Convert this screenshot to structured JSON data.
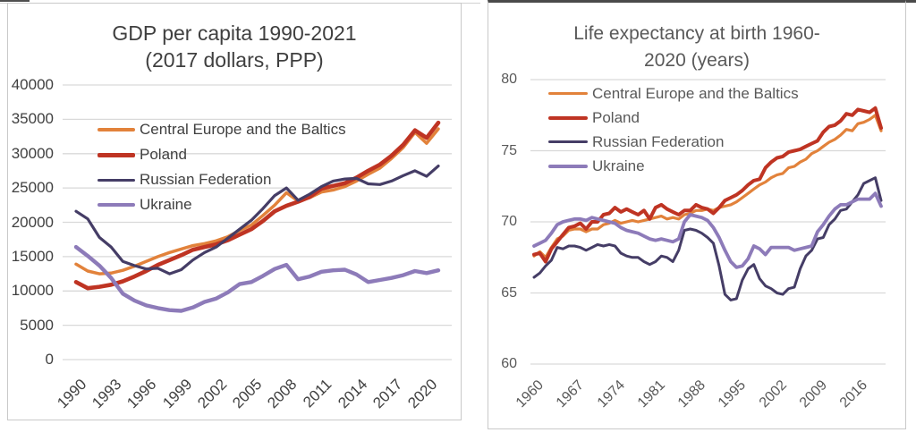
{
  "page": {
    "background": "#ffffff",
    "top_rule_color": "#4a4a4a",
    "panel_border_color": "#c9c9c9",
    "gridline_color": "#d9d9d9"
  },
  "chart_data": [
    {
      "type": "line",
      "title": "GDP per capita 1990-2021 (2017 dollars, PPP)",
      "title_line1": "GDP per capita 1990-2021",
      "title_line2": "(2017 dollars, PPP)",
      "xlabel": "",
      "ylabel": "",
      "xlim": [
        1990,
        2021
      ],
      "ylim": [
        0,
        40000
      ],
      "y_ticks": [
        0,
        5000,
        10000,
        15000,
        20000,
        25000,
        30000,
        35000,
        40000
      ],
      "x_ticks": [
        1990,
        1993,
        1996,
        1999,
        2002,
        2005,
        2008,
        2011,
        2014,
        2017,
        2020
      ],
      "grid": true,
      "legend_position": "upper-left-inside",
      "text_color": "#404040",
      "x": [
        1990,
        1991,
        1992,
        1993,
        1994,
        1995,
        1996,
        1997,
        1998,
        1999,
        2000,
        2001,
        2002,
        2003,
        2004,
        2005,
        2006,
        2007,
        2008,
        2009,
        2010,
        2011,
        2012,
        2013,
        2014,
        2015,
        2016,
        2017,
        2018,
        2019,
        2020,
        2021
      ],
      "series": [
        {
          "name": "Central Europe and the Baltics",
          "color": "#e2823b",
          "values": [
            13900,
            12900,
            12500,
            12600,
            13000,
            13600,
            14300,
            15000,
            15600,
            16100,
            16600,
            16900,
            17300,
            17900,
            18800,
            19600,
            21000,
            22500,
            24300,
            23100,
            23600,
            24400,
            24700,
            25200,
            26000,
            27000,
            27900,
            29300,
            30900,
            33100,
            31500,
            33600
          ]
        },
        {
          "name": "Poland",
          "color": "#bf3423",
          "values": [
            11300,
            10400,
            10600,
            10900,
            11400,
            12100,
            12900,
            13800,
            14500,
            15200,
            16000,
            16400,
            16800,
            17400,
            18200,
            19000,
            20200,
            21600,
            22400,
            23000,
            23700,
            24900,
            25300,
            25700,
            26500,
            27500,
            28400,
            29700,
            31300,
            33400,
            32300,
            34500
          ]
        },
        {
          "name": "Russian Federation",
          "color": "#453d66",
          "values": [
            21600,
            20500,
            17800,
            16400,
            14300,
            13700,
            13200,
            13300,
            12500,
            13100,
            14500,
            15600,
            16400,
            17700,
            19000,
            20300,
            22000,
            23900,
            25000,
            23200,
            24100,
            25200,
            26000,
            26300,
            26400,
            25600,
            25500,
            26000,
            26800,
            27500,
            26700,
            28200
          ]
        },
        {
          "name": "Ukraine",
          "color": "#8d7bb9",
          "values": [
            16400,
            15100,
            13700,
            11900,
            9600,
            8600,
            7900,
            7500,
            7200,
            7100,
            7600,
            8400,
            8900,
            9800,
            11000,
            11300,
            12200,
            13200,
            13800,
            11700,
            12100,
            12800,
            13000,
            13100,
            12400,
            11300,
            11600,
            11900,
            12300,
            12900,
            12600,
            13000
          ]
        }
      ]
    },
    {
      "type": "line",
      "title": "Life expectancy at birth 1960-2020 (years)",
      "title_line1": "Life expectancy at birth 1960-",
      "title_line2": "2020 (years)",
      "xlabel": "",
      "ylabel": "",
      "xlim": [
        1960,
        2020
      ],
      "ylim": [
        60,
        80
      ],
      "y_ticks": [
        60,
        65,
        70,
        75,
        80
      ],
      "x_ticks": [
        1960,
        1967,
        1974,
        1981,
        1988,
        1995,
        2002,
        2009,
        2016
      ],
      "grid": true,
      "legend_position": "upper-left-inside",
      "text_color": "#595959",
      "x": [
        1960,
        1961,
        1962,
        1963,
        1964,
        1965,
        1966,
        1967,
        1968,
        1969,
        1970,
        1971,
        1972,
        1973,
        1974,
        1975,
        1976,
        1977,
        1978,
        1979,
        1980,
        1981,
        1982,
        1983,
        1984,
        1985,
        1986,
        1987,
        1988,
        1989,
        1990,
        1991,
        1992,
        1993,
        1994,
        1995,
        1996,
        1997,
        1998,
        1999,
        2000,
        2001,
        2002,
        2003,
        2004,
        2005,
        2006,
        2007,
        2008,
        2009,
        2010,
        2011,
        2012,
        2013,
        2014,
        2015,
        2016,
        2017,
        2018,
        2019,
        2020
      ],
      "series": [
        {
          "name": "Central Europe and the Baltics",
          "color": "#e2823b",
          "values": [
            67.6,
            67.9,
            67.5,
            68.2,
            68.8,
            69.0,
            69.4,
            69.5,
            69.5,
            69.3,
            69.5,
            69.5,
            69.8,
            69.9,
            70.1,
            69.9,
            70.0,
            70.1,
            70.0,
            70.1,
            70.2,
            70.3,
            70.4,
            70.2,
            70.3,
            70.2,
            70.5,
            70.6,
            70.8,
            70.8,
            70.9,
            70.8,
            71.0,
            71.1,
            71.2,
            71.4,
            71.7,
            72.0,
            72.3,
            72.6,
            72.8,
            73.1,
            73.3,
            73.4,
            73.8,
            73.9,
            74.2,
            74.4,
            74.8,
            75.0,
            75.3,
            75.6,
            75.8,
            76.1,
            76.5,
            76.4,
            76.9,
            77.0,
            77.2,
            77.5,
            76.4
          ]
        },
        {
          "name": "Poland",
          "color": "#bf3423",
          "values": [
            67.7,
            67.8,
            67.2,
            68.1,
            68.6,
            69.1,
            69.6,
            69.7,
            69.9,
            69.5,
            70.0,
            70.0,
            70.5,
            70.6,
            71.0,
            70.7,
            70.9,
            70.7,
            70.5,
            70.8,
            70.2,
            71.0,
            71.2,
            70.9,
            70.7,
            70.5,
            70.8,
            70.8,
            71.2,
            71.0,
            70.9,
            70.6,
            71.0,
            71.5,
            71.7,
            71.9,
            72.2,
            72.6,
            72.9,
            73.0,
            73.8,
            74.2,
            74.5,
            74.6,
            74.9,
            75.0,
            75.1,
            75.3,
            75.5,
            75.7,
            76.3,
            76.7,
            76.8,
            77.1,
            77.6,
            77.5,
            77.9,
            77.8,
            77.7,
            78.0,
            76.6
          ]
        },
        {
          "name": "Russian Federation",
          "color": "#453d66",
          "values": [
            66.1,
            66.4,
            66.9,
            67.3,
            68.2,
            68.1,
            68.3,
            68.3,
            68.2,
            68.0,
            68.2,
            68.4,
            68.3,
            68.4,
            68.3,
            67.8,
            67.6,
            67.5,
            67.5,
            67.2,
            67.0,
            67.2,
            67.6,
            67.5,
            67.2,
            68.0,
            69.4,
            69.5,
            69.4,
            69.2,
            68.9,
            68.5,
            66.9,
            64.9,
            64.5,
            64.6,
            65.9,
            66.7,
            67.0,
            66.0,
            65.5,
            65.3,
            65.0,
            64.9,
            65.3,
            65.4,
            66.7,
            67.6,
            68.0,
            68.8,
            68.9,
            69.8,
            70.2,
            70.8,
            70.9,
            71.4,
            71.9,
            72.7,
            72.9,
            73.1,
            71.5
          ]
        },
        {
          "name": "Ukraine",
          "color": "#8d7bb9",
          "values": [
            68.3,
            68.5,
            68.7,
            69.2,
            69.8,
            70.0,
            70.1,
            70.2,
            70.2,
            70.1,
            70.3,
            70.2,
            70.1,
            70.0,
            69.9,
            69.6,
            69.4,
            69.3,
            69.2,
            69.0,
            68.8,
            68.7,
            68.8,
            68.7,
            68.6,
            68.8,
            70.0,
            70.5,
            70.4,
            70.3,
            70.1,
            69.6,
            68.9,
            68.0,
            67.2,
            66.8,
            66.9,
            67.4,
            68.3,
            68.1,
            67.7,
            68.2,
            68.2,
            68.2,
            68.2,
            68.0,
            68.1,
            68.2,
            68.3,
            69.3,
            69.8,
            70.4,
            70.9,
            71.2,
            71.2,
            71.4,
            71.6,
            71.6,
            71.6,
            72.0,
            71.1
          ]
        }
      ]
    }
  ]
}
